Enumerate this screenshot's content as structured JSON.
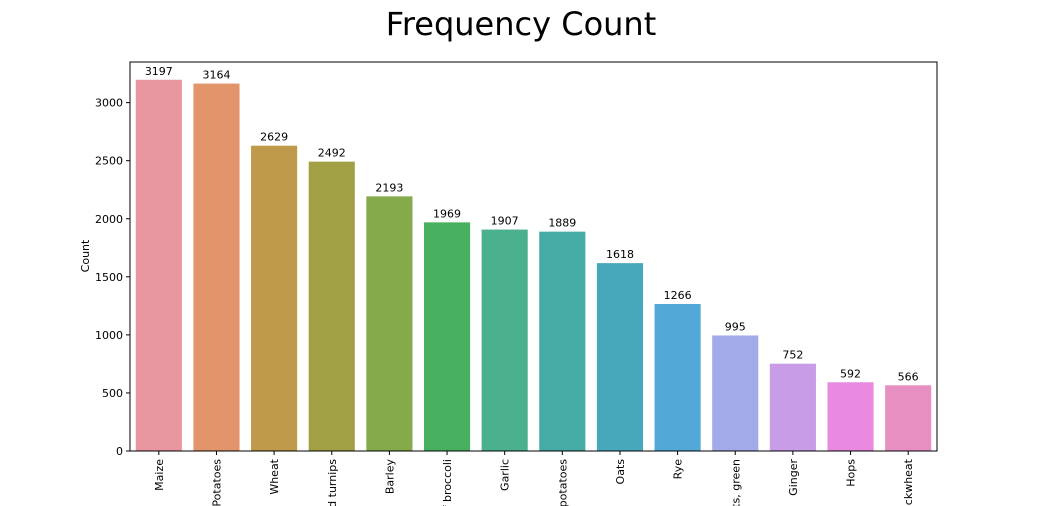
{
  "chart_data": {
    "type": "bar",
    "title": "Frequency Count",
    "xlabel": "",
    "ylabel": "Count",
    "categories": [
      "Maize",
      "Potatoes",
      "Wheat",
      "d turnips",
      "Barley",
      "f broccoli",
      "Garlic",
      "potatoes",
      "Oats",
      "Rye",
      "ts, green",
      "Ginger",
      "Hops",
      "ckwheat"
    ],
    "values": [
      3197,
      3164,
      2629,
      2492,
      2193,
      1969,
      1907,
      1889,
      1618,
      1266,
      995,
      752,
      592,
      566
    ],
    "data_labels": [
      "3197",
      "3164",
      "2629",
      "2492",
      "2193",
      "1969",
      "1907",
      "1889",
      "1618",
      "1266",
      "995",
      "752",
      "592",
      "566"
    ],
    "colors": [
      "#e8969f",
      "#e2946a",
      "#bf9a4a",
      "#a2a045",
      "#85aa4b",
      "#46b05f",
      "#4ab08e",
      "#46aba5",
      "#48a8bb",
      "#52a8d6",
      "#a2aaea",
      "#c89ce6",
      "#e98ae0",
      "#e88fc1"
    ],
    "yticks": [
      0,
      500,
      1000,
      1500,
      2000,
      2500,
      3000
    ],
    "ytick_labels": [
      "0",
      "500",
      "1000",
      "1500",
      "2000",
      "2500",
      "3000"
    ],
    "ylim": [
      0,
      3350
    ],
    "grid": false,
    "legend": "none"
  }
}
